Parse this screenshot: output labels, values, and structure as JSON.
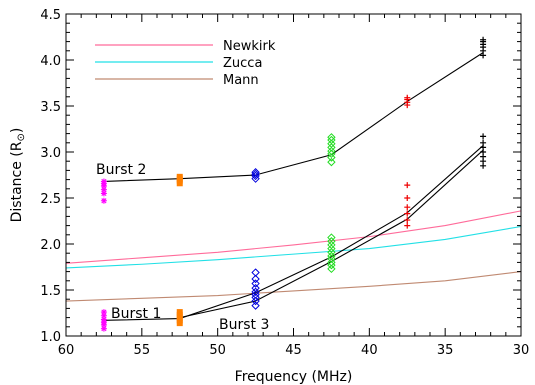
{
  "chart_data": {
    "type": "scatter",
    "xlabel": "Frequency (MHz)",
    "ylabel_main": "Distance (R",
    "ylabel_symbol": "⊙",
    "ylabel_close": ")",
    "xlim": [
      60,
      30
    ],
    "ylim": [
      1.0,
      4.5
    ],
    "x_ticks": [
      60,
      55,
      50,
      45,
      40,
      35,
      30
    ],
    "y_ticks": [
      "1.0",
      "1.5",
      "2.0",
      "2.5",
      "3.0",
      "3.5",
      "4.0",
      "4.5"
    ],
    "grid": false,
    "legend_position": "top-left",
    "models": [
      {
        "name": "Newkirk",
        "color": "#ff6b9a",
        "x": [
          60,
          55,
          50,
          45,
          40,
          35,
          30
        ],
        "y": [
          1.79,
          1.85,
          1.91,
          1.99,
          2.08,
          2.2,
          2.36
        ]
      },
      {
        "name": "Zucca",
        "color": "#22e0e6",
        "x": [
          60,
          55,
          50,
          45,
          40,
          35,
          30
        ],
        "y": [
          1.74,
          1.78,
          1.83,
          1.89,
          1.95,
          2.05,
          2.19
        ]
      },
      {
        "name": "Mann",
        "color": "#c08a72",
        "x": [
          60,
          55,
          50,
          45,
          40,
          35,
          30
        ],
        "y": [
          1.38,
          1.41,
          1.44,
          1.49,
          1.54,
          1.6,
          1.7
        ]
      }
    ],
    "bursts": [
      {
        "label": "Burst 2",
        "x": [
          57.5,
          52.5,
          47.5,
          42.5,
          37.5,
          32.5
        ],
        "y": [
          2.68,
          2.71,
          2.75,
          2.97,
          3.55,
          4.08
        ]
      },
      {
        "label": "Burst 1",
        "x": [
          57.5,
          52.5,
          47.5,
          42.5,
          37.5,
          32.5
        ],
        "y": [
          1.17,
          1.19,
          1.47,
          1.86,
          2.34,
          3.07
        ]
      },
      {
        "label": "Burst 3",
        "x": [
          52.5,
          47.5,
          42.5,
          37.5,
          32.5
        ],
        "y": [
          1.2,
          1.38,
          1.81,
          2.27,
          3.02
        ]
      }
    ],
    "scatter_groups": [
      {
        "freq": 57.5,
        "color": "#ff00ff",
        "marker": "asterisk",
        "y": [
          2.47,
          2.55,
          2.59,
          2.63,
          2.66,
          2.68,
          1.08,
          1.12,
          1.15,
          1.18,
          1.22,
          1.26
        ]
      },
      {
        "freq": 52.5,
        "color": "#ff8000",
        "marker": "square",
        "y": [
          2.66,
          2.69,
          2.71,
          2.73,
          1.14,
          1.17,
          1.2,
          1.23,
          1.26
        ]
      },
      {
        "freq": 47.5,
        "color": "#0000dd",
        "marker": "diamond",
        "y": [
          2.71,
          2.74,
          2.76,
          2.78,
          1.33,
          1.38,
          1.42,
          1.45,
          1.48,
          1.52,
          1.57,
          1.62,
          1.69
        ]
      },
      {
        "freq": 42.5,
        "color": "#22dd22",
        "marker": "diamond",
        "y": [
          2.89,
          2.94,
          2.98,
          3.01,
          3.05,
          3.09,
          3.13,
          3.16,
          1.73,
          1.77,
          1.8,
          1.84,
          1.87,
          1.91,
          1.95,
          1.99,
          2.03,
          2.07
        ]
      },
      {
        "freq": 37.5,
        "color": "#ee0000",
        "marker": "plus",
        "y": [
          3.51,
          3.54,
          3.57,
          3.59,
          2.2,
          2.26,
          2.33,
          2.4,
          2.5,
          2.64
        ]
      },
      {
        "freq": 32.5,
        "color": "#000000",
        "marker": "plus",
        "y": [
          4.05,
          4.1,
          4.14,
          4.17,
          4.2,
          4.22,
          2.85,
          2.9,
          2.95,
          3.0,
          3.05,
          3.1,
          3.17
        ]
      }
    ]
  }
}
